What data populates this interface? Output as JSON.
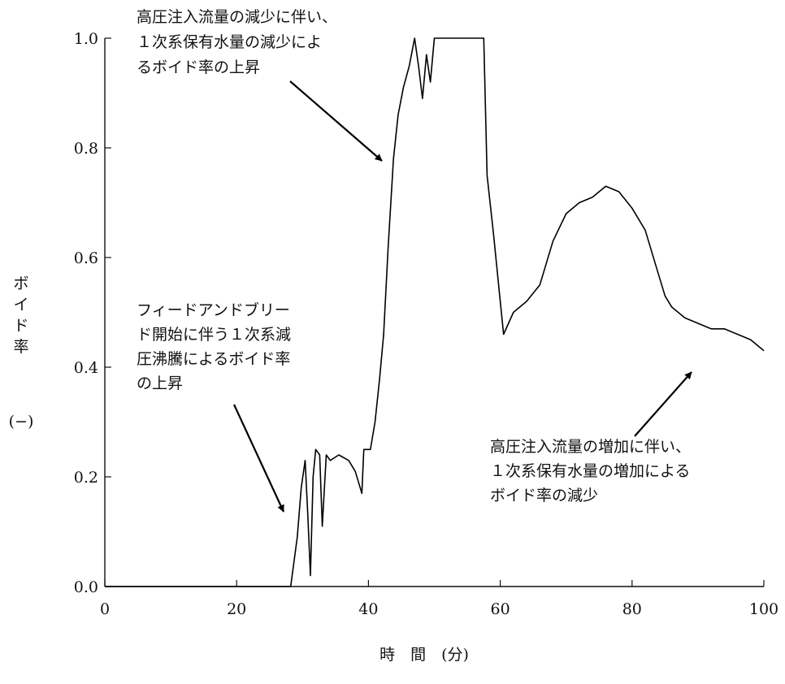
{
  "chart_data": {
    "type": "line",
    "title": "",
    "xlabel": "時　間　(分)",
    "ylabel_lines": [
      "ボ",
      "イ",
      "ド",
      "率",
      "(−)"
    ],
    "xlim": [
      0,
      100
    ],
    "ylim": [
      0.0,
      1.0
    ],
    "x_ticks": [
      "0",
      "20",
      "40",
      "60",
      "80",
      "100"
    ],
    "y_ticks": [
      "0.0",
      "0.2",
      "0.4",
      "0.6",
      "0.8",
      "1.0"
    ],
    "grid": false,
    "legend": "none",
    "series": [
      {
        "color": "#000000",
        "x": [
          0,
          28.2,
          29.2,
          29.8,
          30.4,
          30.8,
          31.2,
          31.6,
          32.0,
          32.6,
          33.0,
          33.6,
          34.2,
          35.5,
          37.0,
          38.0,
          39.0,
          39.3,
          40.3,
          41.0,
          41.7,
          42.3,
          43.0,
          43.8,
          44.5,
          45.3,
          46.2,
          47.0,
          47.6,
          48.2,
          48.8,
          49.4,
          50.0,
          55.0,
          57.5,
          58.0,
          59.0,
          60.0,
          60.5,
          62.0,
          64.0,
          66.0,
          68.0,
          70.0,
          72.0,
          74.0,
          76.0,
          78.0,
          80.0,
          82.0,
          84.0,
          85.0,
          86.0,
          88.0,
          90.0,
          92.0,
          94.0,
          96.0,
          98.0,
          100.0
        ],
        "y": [
          0.0,
          0.0,
          0.09,
          0.18,
          0.23,
          0.13,
          0.02,
          0.2,
          0.25,
          0.24,
          0.11,
          0.24,
          0.23,
          0.24,
          0.23,
          0.21,
          0.17,
          0.25,
          0.25,
          0.3,
          0.38,
          0.46,
          0.62,
          0.78,
          0.86,
          0.91,
          0.95,
          1.0,
          0.95,
          0.89,
          0.97,
          0.92,
          1.0,
          1.0,
          1.0,
          0.75,
          0.64,
          0.52,
          0.46,
          0.5,
          0.52,
          0.55,
          0.63,
          0.68,
          0.7,
          0.71,
          0.73,
          0.72,
          0.69,
          0.65,
          0.57,
          0.53,
          0.51,
          0.49,
          0.48,
          0.47,
          0.47,
          0.46,
          0.45,
          0.43
        ]
      }
    ],
    "annotations": [
      {
        "lines": [
          "高圧注入流量の減少に伴い、",
          "１次系保有水量の減少によ",
          "るボイド率の上昇"
        ]
      },
      {
        "lines": [
          "フィードアンドブリー",
          "ド開始に伴う１次系減",
          "圧沸騰によるボイド率",
          "の上昇"
        ]
      },
      {
        "lines": [
          "高圧注入流量の増加に伴い、",
          "１次系保有水量の増加による",
          "ボイド率の減少"
        ]
      }
    ]
  }
}
